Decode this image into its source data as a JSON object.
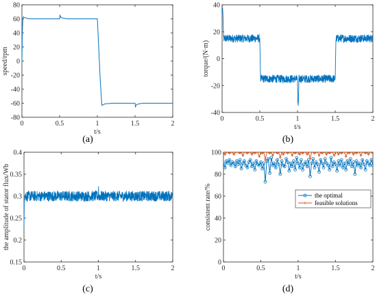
{
  "colors": {
    "blue": "#0072BD",
    "orange": "#D95319",
    "axis": "#262626"
  },
  "chart_data": [
    {
      "id": "a",
      "type": "line",
      "caption": "(a)",
      "xlabel": "t/s",
      "ylabel": "speed/rpm",
      "xlim": [
        0,
        2
      ],
      "ylim": [
        -80,
        80
      ],
      "xticks": [
        0,
        0.5,
        1,
        1.5,
        2
      ],
      "xtick_labels": [
        "0",
        "0.5",
        "1",
        "1.5",
        "2"
      ],
      "yticks": [
        -80,
        -60,
        -40,
        -20,
        0,
        20,
        40,
        60,
        80
      ],
      "ytick_labels": [
        "-80",
        "-60",
        "-40",
        "-20",
        "0",
        "20",
        "40",
        "60",
        "80"
      ],
      "grid": false,
      "series": [
        {
          "color": "#0072BD",
          "x": [
            0,
            0.005,
            0.012,
            0.02,
            0.03,
            0.06,
            0.1,
            0.2,
            0.3,
            0.4,
            0.5,
            0.505,
            0.52,
            0.55,
            0.6,
            0.7,
            0.8,
            0.9,
            1.0,
            1.005,
            1.02,
            1.04,
            1.06,
            1.08,
            1.1,
            1.2,
            1.3,
            1.4,
            1.5,
            1.505,
            1.52,
            1.55,
            1.6,
            1.7,
            1.8,
            1.9,
            2.0
          ],
          "y": [
            0,
            40,
            60,
            63,
            62,
            61,
            60,
            60,
            60,
            60,
            60,
            65,
            62,
            61,
            60,
            60,
            60,
            60,
            60,
            50,
            15,
            -30,
            -63,
            -62,
            -61,
            -60,
            -60,
            -60,
            -60,
            -65,
            -62,
            -61,
            -60,
            -60,
            -60,
            -60,
            -60
          ]
        }
      ]
    },
    {
      "id": "b",
      "type": "line",
      "caption": "(b)",
      "xlabel": "t/s",
      "ylabel": "torque/(N·m)",
      "xlim": [
        0,
        2
      ],
      "ylim": [
        -40,
        40
      ],
      "xticks": [
        0,
        0.5,
        1,
        1.5,
        2
      ],
      "xtick_labels": [
        "0",
        "0.5",
        "1",
        "1.5",
        "2"
      ],
      "yticks": [
        -40,
        -20,
        0,
        20,
        40
      ],
      "ytick_labels": [
        "-40",
        "-20",
        "0",
        "20",
        "40"
      ],
      "grid": false,
      "series": [
        {
          "color": "#0072BD",
          "x": [
            0,
            0.01,
            0.02,
            0.03,
            0.5,
            0.51,
            1.0,
            1.005,
            1.01,
            1.02,
            1.5,
            1.51,
            2.0
          ],
          "y": [
            35,
            35,
            15,
            15,
            15,
            -15,
            -15,
            -35,
            -35,
            -15,
            -15,
            15,
            15
          ],
          "band": 3
        }
      ]
    },
    {
      "id": "c",
      "type": "line",
      "caption": "(c)",
      "xlabel": "t/s",
      "ylabel": "the amplitude of stator flux/Wb",
      "xlim": [
        0,
        2
      ],
      "ylim": [
        0.15,
        0.4
      ],
      "xticks": [
        0,
        0.5,
        1,
        1.5,
        2
      ],
      "xtick_labels": [
        "0",
        "0.5",
        "1",
        "1.5",
        "2"
      ],
      "yticks": [
        0.15,
        0.2,
        0.25,
        0.3,
        0.35,
        0.4
      ],
      "ytick_labels": [
        "0.15",
        "0.2",
        "0.25",
        "0.3",
        "0.35",
        "0.4"
      ],
      "grid": false,
      "series": [
        {
          "color": "#0072BD",
          "x": [
            0,
            0.005,
            0.01,
            0.015,
            1.0,
            1.002,
            1.004,
            1.006,
            2.0
          ],
          "y": [
            0.23,
            0.3,
            0.3,
            0.3,
            0.3,
            0.325,
            0.3,
            0.3,
            0.3
          ],
          "band": 0.012
        }
      ]
    },
    {
      "id": "d",
      "type": "line",
      "caption": "(d)",
      "xlabel": "t/s",
      "ylabel": "consistent rate/%",
      "xlim": [
        0,
        2
      ],
      "ylim": [
        0,
        100
      ],
      "xticks": [
        0,
        0.5,
        1,
        1.5,
        2
      ],
      "xtick_labels": [
        "0",
        "0.5",
        "1",
        "1.5",
        "2"
      ],
      "yticks": [
        0,
        20,
        40,
        60,
        80,
        100
      ],
      "ytick_labels": [
        "0",
        "20",
        "40",
        "60",
        "80",
        "100"
      ],
      "grid": false,
      "legend": "center-right",
      "series": [
        {
          "name": "the optimal",
          "color": "#0072BD",
          "marker": "circle",
          "x": [
            0,
            0.02,
            0.04,
            0.06,
            0.08,
            0.1,
            0.12,
            0.14,
            0.16,
            0.18,
            0.2,
            0.22,
            0.24,
            0.26,
            0.28,
            0.3,
            0.32,
            0.34,
            0.36,
            0.38,
            0.4,
            0.42,
            0.44,
            0.46,
            0.48,
            0.5,
            0.52,
            0.54,
            0.56,
            0.58,
            0.6,
            0.62,
            0.64,
            0.66,
            0.68,
            0.7,
            0.72,
            0.74,
            0.76,
            0.78,
            0.8,
            0.82,
            0.84,
            0.86,
            0.88,
            0.9,
            0.92,
            0.94,
            0.96,
            0.98,
            1.0,
            1.02,
            1.04,
            1.06,
            1.08,
            1.1,
            1.12,
            1.14,
            1.16,
            1.18,
            1.2,
            1.22,
            1.24,
            1.26,
            1.28,
            1.3,
            1.32,
            1.34,
            1.36,
            1.38,
            1.4,
            1.42,
            1.44,
            1.46,
            1.48,
            1.5,
            1.52,
            1.54,
            1.56,
            1.58,
            1.6,
            1.62,
            1.64,
            1.66,
            1.68,
            1.7,
            1.72,
            1.74,
            1.76,
            1.78,
            1.8,
            1.82,
            1.84,
            1.86,
            1.88,
            1.9,
            1.92,
            1.94,
            1.96,
            1.98,
            2.0
          ],
          "y": [
            90,
            86,
            92,
            90,
            93,
            88,
            91,
            90,
            87,
            92,
            89,
            93,
            85,
            90,
            92,
            88,
            86,
            91,
            93,
            87,
            90,
            84,
            92,
            89,
            88,
            91,
            85,
            90,
            73,
            92,
            94,
            81,
            95,
            88,
            90,
            86,
            93,
            89,
            80,
            92,
            88,
            87,
            94,
            91,
            83,
            90,
            87,
            92,
            84,
            95,
            90,
            86,
            93,
            84,
            89,
            91,
            87,
            93,
            78,
            90,
            94,
            86,
            91,
            89,
            82,
            93,
            90,
            86,
            94,
            90,
            88,
            84,
            95,
            87,
            91,
            89,
            83,
            92,
            88,
            93,
            86,
            90,
            84,
            92,
            89,
            94,
            87,
            91,
            80,
            92,
            88,
            90,
            86,
            93,
            89,
            84,
            92,
            90,
            88,
            93,
            88
          ]
        },
        {
          "name": "feasible solutions",
          "color": "#D95319",
          "marker": "plus",
          "x": [
            0,
            0.02,
            0.04,
            0.06,
            0.08,
            0.1,
            0.12,
            0.14,
            0.16,
            0.18,
            0.2,
            0.22,
            0.24,
            0.26,
            0.28,
            0.3,
            0.32,
            0.34,
            0.36,
            0.38,
            0.4,
            0.42,
            0.44,
            0.46,
            0.48,
            0.5,
            0.52,
            0.54,
            0.56,
            0.58,
            0.6,
            0.62,
            0.64,
            0.66,
            0.68,
            0.7,
            0.72,
            0.74,
            0.76,
            0.78,
            0.8,
            0.82,
            0.84,
            0.86,
            0.88,
            0.9,
            0.92,
            0.94,
            0.96,
            0.98,
            1.0,
            1.02,
            1.04,
            1.06,
            1.08,
            1.1,
            1.12,
            1.14,
            1.16,
            1.18,
            1.2,
            1.22,
            1.24,
            1.26,
            1.28,
            1.3,
            1.32,
            1.34,
            1.36,
            1.38,
            1.4,
            1.42,
            1.44,
            1.46,
            1.48,
            1.5,
            1.52,
            1.54,
            1.56,
            1.58,
            1.6,
            1.62,
            1.64,
            1.66,
            1.68,
            1.7,
            1.72,
            1.74,
            1.76,
            1.78,
            1.8,
            1.82,
            1.84,
            1.86,
            1.88,
            1.9,
            1.92,
            1.94,
            1.96,
            1.98,
            2.0
          ],
          "y": [
            100,
            98,
            100,
            100,
            99,
            100,
            100,
            98,
            100,
            100,
            100,
            99,
            100,
            97,
            100,
            100,
            99,
            100,
            100,
            98,
            100,
            99,
            100,
            100,
            96,
            100,
            99,
            100,
            93,
            100,
            100,
            99,
            100,
            97,
            100,
            100,
            99,
            100,
            95,
            100,
            98,
            100,
            100,
            99,
            100,
            100,
            97,
            100,
            99,
            100,
            100,
            98,
            100,
            99,
            100,
            100,
            98,
            100,
            94,
            100,
            100,
            99,
            100,
            100,
            97,
            100,
            99,
            100,
            100,
            98,
            100,
            99,
            100,
            100,
            97,
            100,
            100,
            98,
            100,
            99,
            100,
            100,
            96,
            100,
            99,
            100,
            100,
            98,
            100,
            99,
            100,
            100,
            97,
            100,
            100,
            99,
            100,
            98,
            100,
            100,
            99
          ]
        }
      ]
    }
  ]
}
